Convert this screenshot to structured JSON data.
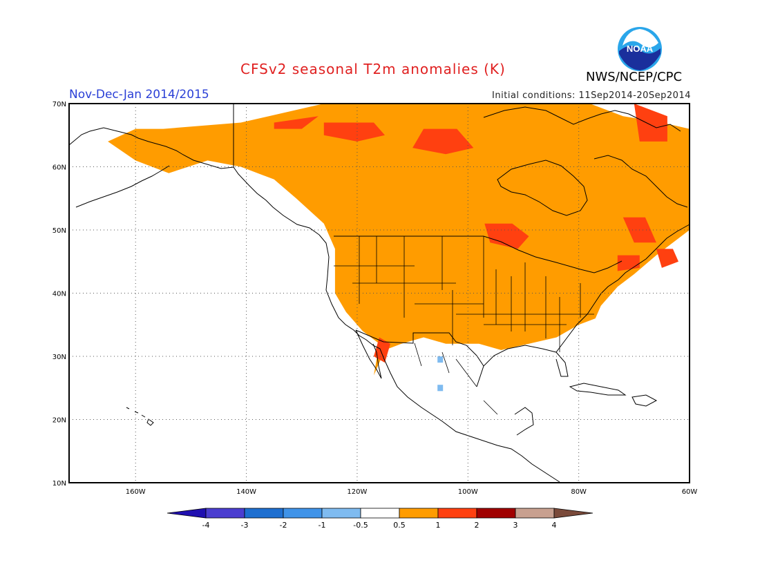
{
  "header": {
    "title": "CFSv2 seasonal T2m anomalies (K)",
    "agency": "NWS/NCEP/CPC",
    "period": "Nov-Dec-Jan 2014/2015",
    "initial_conditions": "Initial conditions: 11Sep2014-20Sep2014",
    "logo_text": "NOAA"
  },
  "map": {
    "projection": "lat-lon",
    "lon_range": [
      -172,
      -60
    ],
    "lat_range": [
      10,
      70
    ],
    "grid": "dotted",
    "lon_ticks": [
      {
        "value": -160,
        "label": "160W"
      },
      {
        "value": -140,
        "label": "140W"
      },
      {
        "value": -120,
        "label": "120W"
      },
      {
        "value": -100,
        "label": "100W"
      },
      {
        "value": -80,
        "label": "80W"
      },
      {
        "value": -60,
        "label": "60W"
      }
    ],
    "lat_ticks": [
      {
        "value": 70,
        "label": "70N"
      },
      {
        "value": 60,
        "label": "60N"
      },
      {
        "value": 50,
        "label": "50N"
      },
      {
        "value": 40,
        "label": "40N"
      },
      {
        "value": 30,
        "label": "30N"
      },
      {
        "value": 20,
        "label": "20N"
      },
      {
        "value": 10,
        "label": "10N"
      }
    ]
  },
  "colorbar": {
    "labels": [
      "-4",
      "-3",
      "-2",
      "-1",
      "-0.5",
      "0.5",
      "1",
      "2",
      "3",
      "4"
    ],
    "colors": [
      "#2010b0",
      "#4b3ed0",
      "#1e6fd0",
      "#3f93e8",
      "#7fbbf0",
      "#ffffff",
      "#ff9c00",
      "#ff4010",
      "#a00000",
      "#c8a090",
      "#7a4a3a"
    ]
  },
  "chart_data": {
    "type": "heatmap",
    "title": "CFSv2 seasonal T2m anomalies (K)",
    "variable": "T2m anomaly (K)",
    "classes": [
      {
        "range": "0.5-1",
        "color": "#ff9c00"
      },
      {
        "range": "1-2",
        "color": "#ff4010"
      },
      {
        "range": "-1 to -0.5",
        "color": "#7fbbf0"
      }
    ],
    "regions": [
      {
        "class": "0.5-1",
        "polygon": [
          [
            -155,
            66
          ],
          [
            -141,
            67
          ],
          [
            -126,
            70
          ],
          [
            -108,
            70
          ],
          [
            -90,
            70
          ],
          [
            -78,
            70
          ],
          [
            -72,
            68
          ],
          [
            -65,
            67
          ],
          [
            -60,
            66
          ],
          [
            -60,
            55
          ],
          [
            -60,
            50
          ],
          [
            -66,
            46
          ],
          [
            -70,
            43
          ],
          [
            -73,
            41
          ],
          [
            -76,
            38
          ],
          [
            -77,
            36
          ],
          [
            -80,
            35
          ],
          [
            -84,
            33
          ],
          [
            -89,
            32
          ],
          [
            -94,
            31
          ],
          [
            -98,
            32
          ],
          [
            -104,
            32
          ],
          [
            -108,
            33
          ],
          [
            -112,
            32
          ],
          [
            -115,
            31
          ],
          [
            -117,
            27
          ],
          [
            -116,
            32
          ],
          [
            -119,
            34
          ],
          [
            -122,
            37
          ],
          [
            -124,
            40
          ],
          [
            -124,
            43
          ],
          [
            -124,
            47
          ],
          [
            -126,
            51
          ],
          [
            -131,
            55
          ],
          [
            -135,
            58
          ],
          [
            -141,
            60
          ],
          [
            -147,
            61
          ],
          [
            -154,
            59
          ],
          [
            -160,
            61
          ],
          [
            -165,
            64
          ],
          [
            -160,
            66
          ]
        ]
      },
      {
        "class": "1-2",
        "polygon": [
          [
            -135,
            66
          ],
          [
            -130,
            66
          ],
          [
            -127,
            68
          ],
          [
            -131,
            67.5
          ],
          [
            -135,
            67
          ]
        ]
      },
      {
        "class": "1-2",
        "polygon": [
          [
            -126,
            67
          ],
          [
            -117,
            67
          ],
          [
            -115,
            65
          ],
          [
            -120,
            64
          ],
          [
            -126,
            65
          ]
        ]
      },
      {
        "class": "1-2",
        "polygon": [
          [
            -108,
            66
          ],
          [
            -102,
            66
          ],
          [
            -99,
            63
          ],
          [
            -104,
            62
          ],
          [
            -110,
            63
          ]
        ]
      },
      {
        "class": "1-2",
        "polygon": [
          [
            -97,
            51
          ],
          [
            -92,
            51
          ],
          [
            -89,
            49
          ],
          [
            -91,
            47
          ],
          [
            -96,
            48
          ]
        ]
      },
      {
        "class": "1-2",
        "polygon": [
          [
            -72,
            52
          ],
          [
            -68,
            52
          ],
          [
            -66,
            48
          ],
          [
            -70,
            48
          ]
        ]
      },
      {
        "class": "1-2",
        "polygon": [
          [
            -73,
            46
          ],
          [
            -69,
            46
          ],
          [
            -69,
            44
          ],
          [
            -73,
            43.5
          ]
        ]
      },
      {
        "class": "1-2",
        "polygon": [
          [
            -66,
            47
          ],
          [
            -63,
            47
          ],
          [
            -62,
            45
          ],
          [
            -65,
            44
          ]
        ]
      },
      {
        "class": "1-2",
        "polygon": [
          [
            -70,
            70
          ],
          [
            -64,
            68
          ],
          [
            -64,
            64
          ],
          [
            -69,
            64
          ]
        ]
      },
      {
        "class": "1-2",
        "polygon": [
          [
            -116,
            33
          ],
          [
            -114,
            32
          ],
          [
            -115,
            29
          ],
          [
            -117,
            30
          ]
        ]
      },
      {
        "class": "-1 to -0.5",
        "polygon": [
          [
            -105.5,
            30
          ],
          [
            -104.5,
            30
          ],
          [
            -104.5,
            29
          ],
          [
            -105.5,
            29
          ]
        ]
      },
      {
        "class": "-1 to -0.5",
        "polygon": [
          [
            -105.5,
            25.5
          ],
          [
            -104.5,
            25.5
          ],
          [
            -104.5,
            24.5
          ],
          [
            -105.5,
            24.5
          ]
        ]
      }
    ]
  }
}
